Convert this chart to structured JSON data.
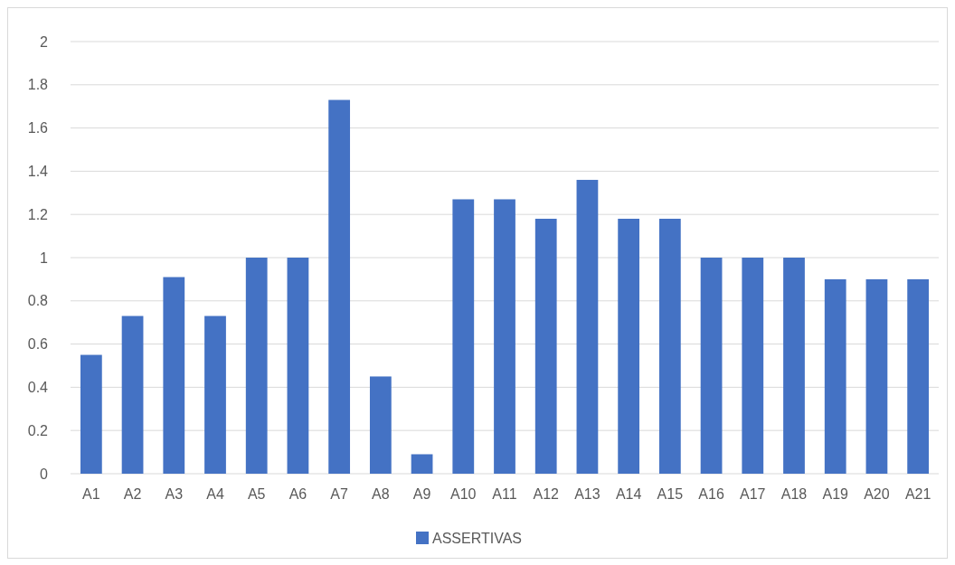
{
  "chart_data": {
    "type": "bar",
    "categories": [
      "A1",
      "A2",
      "A3",
      "A4",
      "A5",
      "A6",
      "A7",
      "A8",
      "A9",
      "A10",
      "A11",
      "A12",
      "A13",
      "A14",
      "A15",
      "A16",
      "A17",
      "A18",
      "A19",
      "A20",
      "A21"
    ],
    "series": [
      {
        "name": "ASSERTIVAS",
        "color": "#4472c4",
        "values": [
          0.55,
          0.73,
          0.91,
          0.73,
          1.0,
          1.0,
          1.73,
          0.45,
          0.09,
          1.27,
          1.27,
          1.18,
          1.36,
          1.18,
          1.18,
          1.0,
          1.0,
          1.0,
          0.9,
          0.9,
          0.9
        ]
      }
    ],
    "ylim": [
      0,
      2
    ],
    "yticks": [
      0,
      0.2,
      0.4,
      0.6,
      0.8,
      1,
      1.2,
      1.4,
      1.6,
      1.8,
      2
    ],
    "grid": "y",
    "legend": "bottom"
  }
}
